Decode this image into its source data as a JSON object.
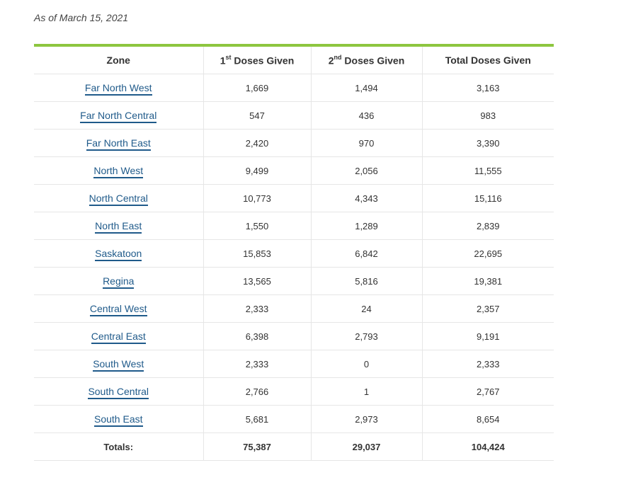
{
  "as_of": "As of March 15, 2021",
  "table": {
    "headers": {
      "zone": "Zone",
      "first_prefix": "1",
      "first_sup": "st",
      "first_suffix": " Doses Given",
      "second_prefix": "2",
      "second_sup": "nd",
      "second_suffix": " Doses Given",
      "total": "Total Doses Given"
    },
    "rows": [
      {
        "zone": "Far North West",
        "first": "1,669",
        "second": "1,494",
        "total": "3,163"
      },
      {
        "zone": "Far North Central",
        "first": "547",
        "second": "436",
        "total": "983"
      },
      {
        "zone": "Far North East",
        "first": "2,420",
        "second": "970",
        "total": "3,390"
      },
      {
        "zone": "North West",
        "first": "9,499",
        "second": "2,056",
        "total": "11,555"
      },
      {
        "zone": "North Central",
        "first": "10,773",
        "second": "4,343",
        "total": "15,116"
      },
      {
        "zone": "North East",
        "first": "1,550",
        "second": "1,289",
        "total": "2,839"
      },
      {
        "zone": "Saskatoon",
        "first": "15,853",
        "second": "6,842",
        "total": "22,695"
      },
      {
        "zone": "Regina",
        "first": "13,565",
        "second": "5,816",
        "total": "19,381"
      },
      {
        "zone": "Central West",
        "first": "2,333",
        "second": "24",
        "total": "2,357"
      },
      {
        "zone": "Central East",
        "first": "6,398",
        "second": "2,793",
        "total": "9,191"
      },
      {
        "zone": "South West",
        "first": "2,333",
        "second": "0",
        "total": "2,333"
      },
      {
        "zone": "South Central",
        "first": "2,766",
        "second": "1",
        "total": "2,767"
      },
      {
        "zone": "South East",
        "first": "5,681",
        "second": "2,973",
        "total": "8,654"
      }
    ],
    "totals": {
      "label": "Totals:",
      "first": "75,387",
      "second": "29,037",
      "total": "104,424"
    }
  },
  "colors": {
    "accent_bar": "#8dc63f",
    "link": "#1f5a8a",
    "grid": "#e6e6e6"
  }
}
